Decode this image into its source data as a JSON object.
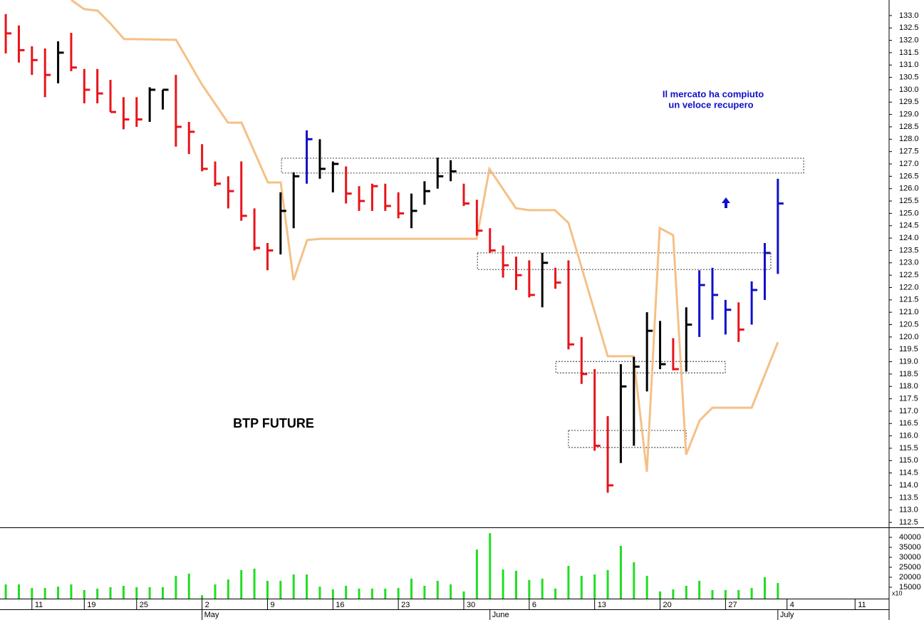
{
  "chart_data": [
    {
      "type": "ohlc",
      "title": "BTP FUTURE",
      "annotations": [
        "Il mercato ha compiuto",
        "un veloce recupero"
      ],
      "xlim": [
        -0.44,
        67.5
      ],
      "ylim": [
        112.3,
        133.63
      ],
      "xticks": [
        {
          "value": 2,
          "label": "11"
        },
        {
          "value": 6,
          "label": "19"
        },
        {
          "value": 10,
          "label": "25"
        },
        {
          "value": 15,
          "label": "2"
        },
        {
          "value": 20,
          "label": "9"
        },
        {
          "value": 25,
          "label": "16"
        },
        {
          "value": 30,
          "label": "23"
        },
        {
          "value": 35,
          "label": "30"
        },
        {
          "value": 40,
          "label": "6"
        },
        {
          "value": 45,
          "label": "13"
        },
        {
          "value": 50,
          "label": "20"
        },
        {
          "value": 55,
          "label": "27"
        },
        {
          "value": 59.7,
          "label": "4"
        },
        {
          "value": 64.9,
          "label": "11"
        }
      ],
      "month_ticks": [
        {
          "value": 15,
          "label": "May"
        },
        {
          "value": 37,
          "label": "June"
        },
        {
          "value": 59,
          "label": "July"
        }
      ],
      "yticks": [
        112.5,
        {
          "value": 113,
          "label": "113.0"
        },
        113.5,
        {
          "value": 114,
          "label": "114.0"
        },
        114.5,
        {
          "value": 115,
          "label": "115.0"
        },
        115.5,
        {
          "value": 116,
          "label": "116.0"
        },
        116.5,
        {
          "value": 117,
          "label": "117.0"
        },
        117.5,
        {
          "value": 118,
          "label": "118.0"
        },
        118.5,
        {
          "value": 119,
          "label": "119.0"
        },
        119.5,
        {
          "value": 120,
          "label": "120.0"
        },
        120.5,
        {
          "value": 121,
          "label": "121.0"
        },
        121.5,
        {
          "value": 122,
          "label": "122.0"
        },
        122.5,
        {
          "value": 123,
          "label": "123.0"
        },
        123.5,
        {
          "value": 124,
          "label": "124.0"
        },
        124.5,
        {
          "value": 125,
          "label": "125.0"
        },
        125.5,
        {
          "value": 126,
          "label": "126.0"
        },
        126.5,
        {
          "value": 127,
          "label": "127.0"
        },
        127.5,
        {
          "value": 128,
          "label": "128.0"
        },
        128.5,
        {
          "value": 129,
          "label": "129.0"
        },
        129.5,
        {
          "value": 130,
          "label": "130.0"
        },
        130.5,
        {
          "value": 131,
          "label": "131.0"
        },
        131.5,
        {
          "value": 132,
          "label": "132.0"
        },
        132.5,
        {
          "value": 133,
          "label": "133.0"
        }
      ],
      "x": [
        0,
        1,
        2,
        3,
        4,
        5,
        6,
        7,
        8,
        9,
        10,
        11,
        12,
        13,
        14,
        15,
        16,
        17,
        18,
        19,
        20,
        21,
        22,
        23,
        24,
        25,
        26,
        27,
        28,
        29,
        30,
        31,
        32,
        33,
        34,
        35,
        36,
        37,
        38,
        39,
        40,
        41,
        42,
        43,
        44,
        45,
        46,
        47,
        48,
        49,
        50,
        51,
        52,
        53,
        54,
        55,
        56,
        57,
        58,
        59
      ],
      "high": [
        133.06,
        132.6,
        131.76,
        131.67,
        131.96,
        132.3,
        130.84,
        130.84,
        130.4,
        129.7,
        129.7,
        130.1,
        130.0,
        130.6,
        128.7,
        127.8,
        127.1,
        126.5,
        127.1,
        125.2,
        123.8,
        125.85,
        126.66,
        128.36,
        128.0,
        127.1,
        126.9,
        126.1,
        126.2,
        126.2,
        125.85,
        125.8,
        126.3,
        127.25,
        127.15,
        126.2,
        125.55,
        124.4,
        123.7,
        123.25,
        123.1,
        123.4,
        122.8,
        123.1,
        120.0,
        118.7,
        116.8,
        118.9,
        119.2,
        121.0,
        120.65,
        119.95,
        121.2,
        122.7,
        122.8,
        121.5,
        121.4,
        122.25,
        123.8,
        126.4
      ],
      "low": [
        131.47,
        131.1,
        130.6,
        129.7,
        130.26,
        130.75,
        129.45,
        129.45,
        129.1,
        128.4,
        128.5,
        128.7,
        129.2,
        127.7,
        127.4,
        126.7,
        126.1,
        125.2,
        124.7,
        123.5,
        122.7,
        123.34,
        124.4,
        126.2,
        126.4,
        125.85,
        125.4,
        125.1,
        125.1,
        125.1,
        124.8,
        124.4,
        125.35,
        126.0,
        126.3,
        125.3,
        124.1,
        123.4,
        122.4,
        121.9,
        121.6,
        121.2,
        121.95,
        119.5,
        118.1,
        115.4,
        113.7,
        114.9,
        115.6,
        117.8,
        118.7,
        118.65,
        118.6,
        120.0,
        120.7,
        120.1,
        119.8,
        120.5,
        121.5,
        122.55
      ],
      "close": [
        132.28,
        131.6,
        131.2,
        130.6,
        131.5,
        130.9,
        130.0,
        129.85,
        129.1,
        128.8,
        128.8,
        130.0,
        130.0,
        128.5,
        128.3,
        126.8,
        126.2,
        125.9,
        124.9,
        123.6,
        123.5,
        125.1,
        126.5,
        128.0,
        126.8,
        127.0,
        125.8,
        125.5,
        126.1,
        125.3,
        125.0,
        125.1,
        125.9,
        126.5,
        126.7,
        125.4,
        124.3,
        123.5,
        122.9,
        122.5,
        121.7,
        123.0,
        122.2,
        119.7,
        118.5,
        115.6,
        114.0,
        118.0,
        118.8,
        120.25,
        118.9,
        118.7,
        120.5,
        122.1,
        121.7,
        121.1,
        120.3,
        121.9,
        123.4,
        125.4
      ],
      "colors": [
        "#e8141b",
        "#e8141b",
        "#e8141b",
        "#e8141b",
        "#000000",
        "#e8141b",
        "#e8141b",
        "#e8141b",
        "#e8141b",
        "#e8141b",
        "#e8141b",
        "#000000",
        "#000000",
        "#e8141b",
        "#e8141b",
        "#e8141b",
        "#e8141b",
        "#e8141b",
        "#e8141b",
        "#e8141b",
        "#e8141b",
        "#000000",
        "#000000",
        "#1010c8",
        "#000000",
        "#000000",
        "#e8141b",
        "#e8141b",
        "#e8141b",
        "#e8141b",
        "#e8141b",
        "#000000",
        "#000000",
        "#000000",
        "#000000",
        "#e8141b",
        "#e8141b",
        "#e8141b",
        "#e8141b",
        "#e8141b",
        "#e8141b",
        "#000000",
        "#e8141b",
        "#e8141b",
        "#e8141b",
        "#e8141b",
        "#e8141b",
        "#000000",
        "#000000",
        "#000000",
        "#000000",
        "#e8141b",
        "#000000",
        "#1010c8",
        "#1010c8",
        "#1010c8",
        "#e8141b",
        "#1010c8",
        "#1010c8",
        "#1010c8"
      ],
      "line": {
        "color": "#f5c087",
        "x": [
          5.01,
          5.99,
          7.02,
          8.0,
          9.04,
          13.01,
          14.97,
          16.98,
          18.02,
          20.03,
          21.01,
          21.99,
          23.03,
          24.01,
          35.98,
          36.96,
          38.98,
          39.96,
          41.97,
          43.0,
          46.0,
          47.96,
          48.99,
          49.97,
          51.0,
          51.99,
          53.02,
          54.0,
          57.0,
          59.0
        ],
        "values": [
          133.63,
          133.26,
          133.2,
          132.68,
          132.05,
          132.02,
          130.23,
          128.67,
          128.67,
          126.25,
          126.25,
          122.3,
          123.92,
          123.97,
          123.97,
          126.8,
          125.21,
          125.13,
          125.13,
          124.61,
          119.22,
          119.22,
          114.55,
          124.41,
          124.12,
          115.24,
          116.62,
          117.14,
          117.14,
          119.79
        ]
      },
      "zones": [
        {
          "x": [
            21.07,
            60.97
          ],
          "y": [
            126.63,
            127.23
          ]
        },
        {
          "x": [
            36.04,
            58.46
          ],
          "y": [
            122.73,
            123.4
          ]
        },
        {
          "x": [
            42.03,
            54.98
          ],
          "y": [
            118.55,
            119.01
          ]
        },
        {
          "x": [
            43.0,
            51.99
          ],
          "y": [
            115.53,
            116.22
          ]
        }
      ]
    },
    {
      "type": "bar",
      "color": "#22dd22",
      "unit_label": "x10",
      "ylim": [
        9286,
        44643
      ],
      "yticks": [
        15000,
        20000,
        25000,
        30000,
        35000,
        40000
      ],
      "x": [
        0,
        1,
        2,
        3,
        4,
        5,
        6,
        7,
        8,
        9,
        10,
        11,
        12,
        13,
        14,
        15,
        16,
        17,
        18,
        19,
        20,
        21,
        22,
        23,
        24,
        25,
        26,
        27,
        28,
        29,
        30,
        31,
        32,
        33,
        34,
        35,
        36,
        37,
        38,
        39,
        40,
        41,
        42,
        43,
        44,
        45,
        46,
        47,
        48,
        49,
        50,
        51,
        52,
        53,
        54,
        55,
        56,
        57,
        58,
        59
      ],
      "values": [
        16400,
        16400,
        14600,
        14600,
        15300,
        16400,
        13600,
        14300,
        15000,
        15700,
        15000,
        15000,
        15000,
        20700,
        21800,
        11000,
        16400,
        18900,
        23600,
        24300,
        18200,
        18200,
        21400,
        21400,
        15300,
        13900,
        15700,
        14300,
        14300,
        14300,
        14600,
        19300,
        15700,
        18200,
        16400,
        12900,
        33900,
        42100,
        23900,
        23200,
        18600,
        19300,
        14300,
        25700,
        20700,
        21400,
        23600,
        35700,
        27500,
        20700,
        12900,
        13900,
        15700,
        18200,
        13600,
        13600,
        13600,
        14600,
        20000,
        17100
      ]
    }
  ]
}
